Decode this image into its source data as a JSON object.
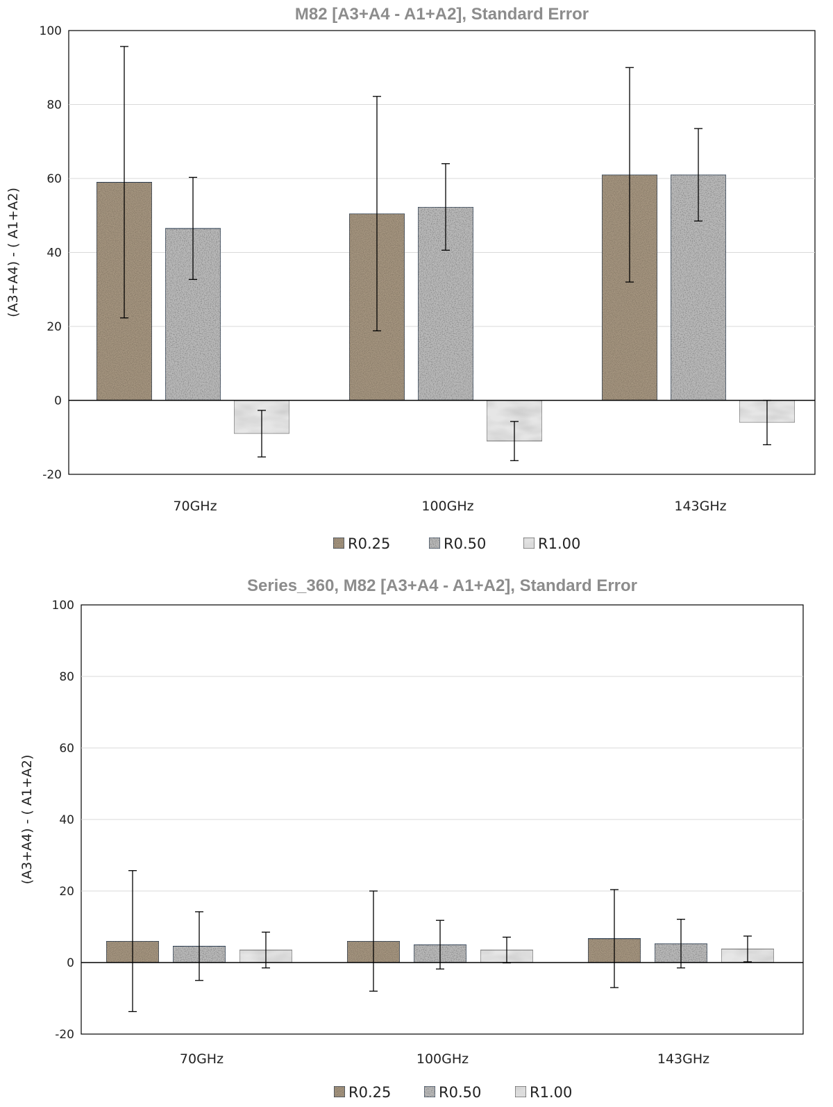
{
  "chart_data": [
    {
      "type": "bar",
      "title": "M82  [A3+A4 - A1+A2],  Standard Error",
      "ylabel": "(A3+A4) - ( A1+A2)",
      "xlabel": "",
      "ylim": [
        -20,
        100
      ],
      "yticks": [
        -20,
        0,
        20,
        40,
        60,
        80,
        100
      ],
      "grid": true,
      "legend": "bottom",
      "categories": [
        "70GHz",
        "100GHz",
        "143GHz"
      ],
      "series": [
        {
          "name": "R0.25",
          "color": "#a89882",
          "values": [
            59.0,
            50.5,
            61.0
          ],
          "errors": [
            36.7,
            31.7,
            29.0
          ]
        },
        {
          "name": "R0.50",
          "color": "#b9b9b9",
          "values": [
            46.5,
            52.3,
            61.0
          ],
          "errors": [
            13.8,
            11.7,
            12.5
          ]
        },
        {
          "name": "R1.00",
          "color": "#e6e6e6",
          "values": [
            -9.0,
            -11.0,
            -6.0
          ],
          "errors": [
            6.3,
            5.3,
            6.0
          ]
        }
      ]
    },
    {
      "type": "bar",
      "title": "Series_360, M82  [A3+A4 - A1+A2],  Standard Error",
      "ylabel": "(A3+A4) - ( A1+A2)",
      "xlabel": "",
      "ylim": [
        -20,
        100
      ],
      "yticks": [
        -20,
        0,
        20,
        40,
        60,
        80,
        100
      ],
      "grid": true,
      "legend": "bottom",
      "categories": [
        "70GHz",
        "100GHz",
        "143GHz"
      ],
      "series": [
        {
          "name": "R0.25",
          "color": "#a89882",
          "values": [
            6.0,
            6.0,
            6.7
          ],
          "errors": [
            19.7,
            14.0,
            13.7
          ]
        },
        {
          "name": "R0.50",
          "color": "#b9b9b9",
          "values": [
            4.6,
            5.0,
            5.3
          ],
          "errors": [
            9.6,
            6.8,
            6.8
          ]
        },
        {
          "name": "R1.00",
          "color": "#e6e6e6",
          "values": [
            3.5,
            3.5,
            3.8
          ],
          "errors": [
            5.0,
            3.6,
            3.6
          ]
        }
      ]
    }
  ]
}
